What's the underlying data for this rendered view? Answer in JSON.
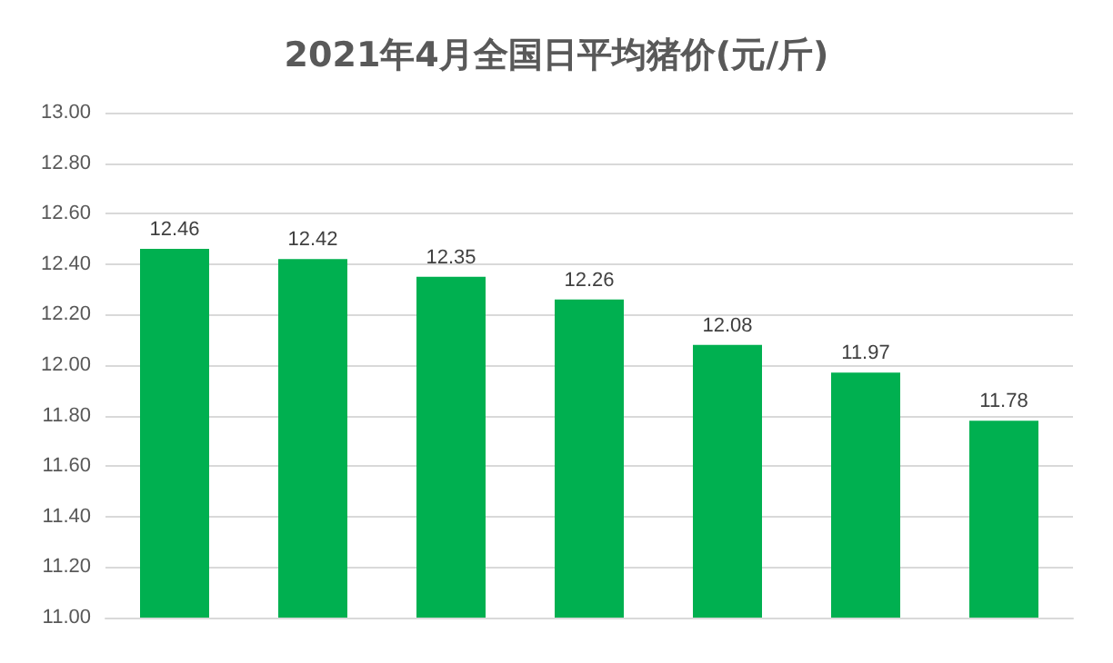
{
  "chart_data": {
    "type": "bar",
    "title": "2021年4月全国日平均猪价(元/斤)",
    "categories": [
      null,
      null,
      null,
      null,
      null,
      null,
      null
    ],
    "values": [
      12.46,
      12.42,
      12.35,
      12.26,
      12.08,
      11.97,
      11.78
    ],
    "color": "#00b050",
    "ylim": [
      11,
      13
    ],
    "yticks": [
      {
        "value": 11,
        "label": "11.00"
      },
      {
        "value": 11.2,
        "label": "11.20"
      },
      {
        "value": 11.4,
        "label": "11.40"
      },
      {
        "value": 11.6,
        "label": "11.60"
      },
      {
        "value": 11.8,
        "label": "11.80"
      },
      {
        "value": 12,
        "label": "12.00"
      },
      {
        "value": 12.2,
        "label": "12.20"
      },
      {
        "value": 12.4,
        "label": "12.40"
      },
      {
        "value": 12.6,
        "label": "12.60"
      },
      {
        "value": 12.8,
        "label": "12.80"
      },
      {
        "value": 13,
        "label": "13.00"
      }
    ],
    "grid": "y",
    "data_labels": true
  }
}
